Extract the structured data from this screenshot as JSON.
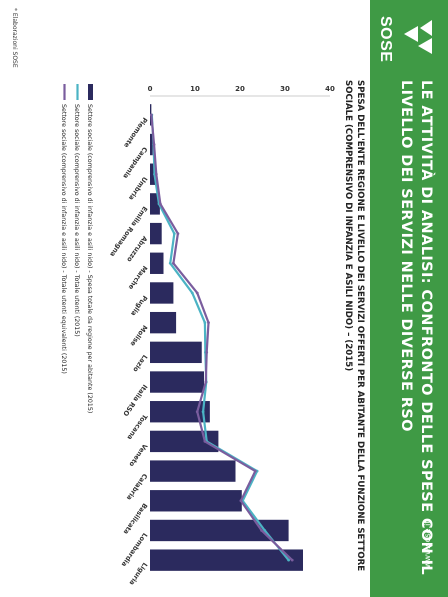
{
  "header": {
    "title": "LE ATTIVITÀ DI ANALISI: CONFRONTO DELLE SPESE CON IL LIVELLO DEI SERVIZI NELLE DIVERSE RSO",
    "logo_text": "SOSE",
    "website": "www.sose.it"
  },
  "subtitle": "SPESA DELL'ENTE REGIONE E LIVELLO DEI SERVIZI OFFERTI PER ABITANTE DELLA FUNZIONE SETTORE SOCIALE (COMPRENSIVO DI INFANZIA E ASILI NIDO) – (2015)",
  "footnote": "* Elaborazioni SOSE",
  "colors": {
    "header_bg": "#3f9a45",
    "bar": "#2b2a5e",
    "line_utenti": "#4bb3c4",
    "line_equivalenti": "#7a5d9e"
  },
  "chart_data": {
    "type": "bar",
    "title": "",
    "xlabel": "",
    "ylabel": "",
    "ylim": [
      0,
      40
    ],
    "yticks": [
      0,
      10,
      20,
      30,
      40
    ],
    "categories": [
      "Piemonte",
      "Campania",
      "Umbria",
      "Emilia Romagna",
      "Abruzzo",
      "Marche",
      "Puglia",
      "Molise",
      "Lazio",
      "Italia RSO",
      "Toscana",
      "Veneto",
      "Calabria",
      "Basilicata",
      "Lombardia",
      "Liguria"
    ],
    "series": [
      {
        "name": "Settore sociale (comprensivo di infanzia e asili nido) - Spesa totale da regione per abitante (2015)",
        "kind": "bar",
        "values": [
          0.3,
          0.6,
          1.2,
          2.2,
          2.6,
          3.0,
          5.2,
          5.8,
          11.5,
          12.0,
          13.3,
          15.2,
          19.0,
          20.4,
          30.8,
          34.0
        ]
      },
      {
        "name": "Settore sociale (comprensivo di infanzia e asili nido) - Totale utenti  (2015)",
        "kind": "line",
        "values": [
          0.4,
          0.8,
          1.0,
          2.0,
          5.4,
          4.5,
          9.4,
          12.2,
          12.3,
          12.5,
          11.8,
          12.6,
          23.8,
          20.6,
          25.5,
          30.8
        ]
      },
      {
        "name": "Settore sociale (comprensivo di infanzia e asili nido) - Totale utenti equivalenti (2015)",
        "kind": "line",
        "values": [
          0.3,
          0.9,
          1.4,
          2.3,
          6.2,
          5.2,
          10.5,
          13.0,
          12.6,
          12.4,
          10.5,
          12.2,
          23.4,
          20.2,
          24.8,
          31.6
        ]
      }
    ],
    "legend": "bottom",
    "grid": false
  }
}
